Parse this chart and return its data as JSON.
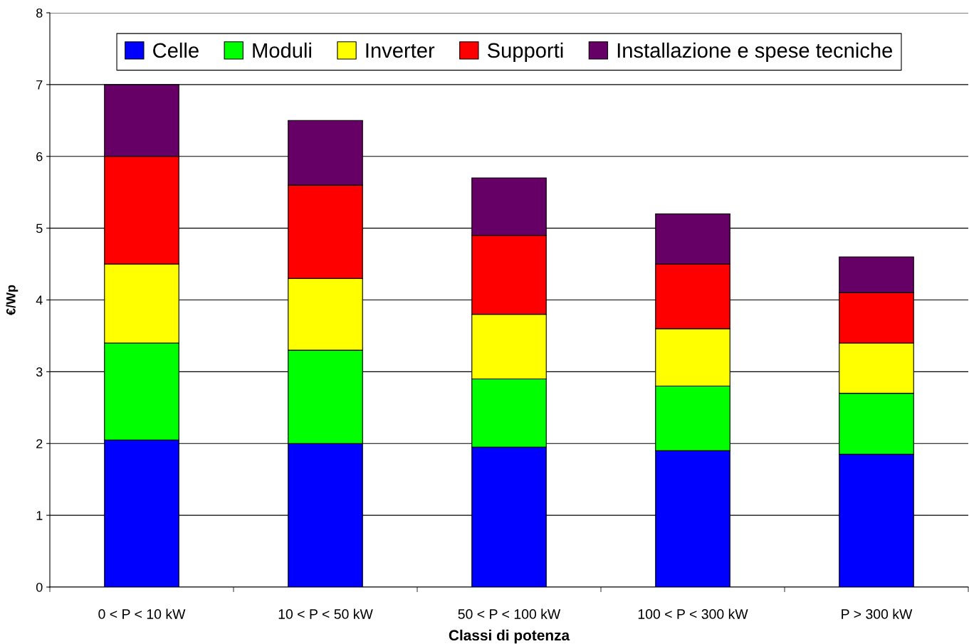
{
  "chart_data": {
    "type": "bar",
    "stacked": true,
    "xlabel": "Classi di potenza",
    "ylabel": "€/Wp",
    "categories": [
      "0 < P < 10 kW",
      "10 < P < 50 kW",
      "50 < P < 100 kW",
      "100 < P < 300 kW",
      "P > 300 kW"
    ],
    "series": [
      {
        "name": "Celle",
        "color": "#0000ff",
        "values": [
          2.05,
          2.0,
          1.95,
          1.9,
          1.85
        ]
      },
      {
        "name": "Moduli",
        "color": "#00ff00",
        "values": [
          1.35,
          1.3,
          0.95,
          0.9,
          0.85
        ]
      },
      {
        "name": "Inverter",
        "color": "#ffff00",
        "values": [
          1.1,
          1.0,
          0.9,
          0.8,
          0.7
        ]
      },
      {
        "name": "Supporti",
        "color": "#ff0000",
        "values": [
          1.5,
          1.3,
          1.1,
          0.9,
          0.7
        ]
      },
      {
        "name": "Installazione e spese tecniche",
        "color": "#660066",
        "values": [
          1.0,
          0.9,
          0.8,
          0.7,
          0.5
        ]
      }
    ],
    "ylim": [
      0,
      8
    ],
    "yticks": [
      0,
      1,
      2,
      3,
      4,
      5,
      6,
      7,
      8
    ],
    "grid": "y",
    "legend": "top"
  }
}
